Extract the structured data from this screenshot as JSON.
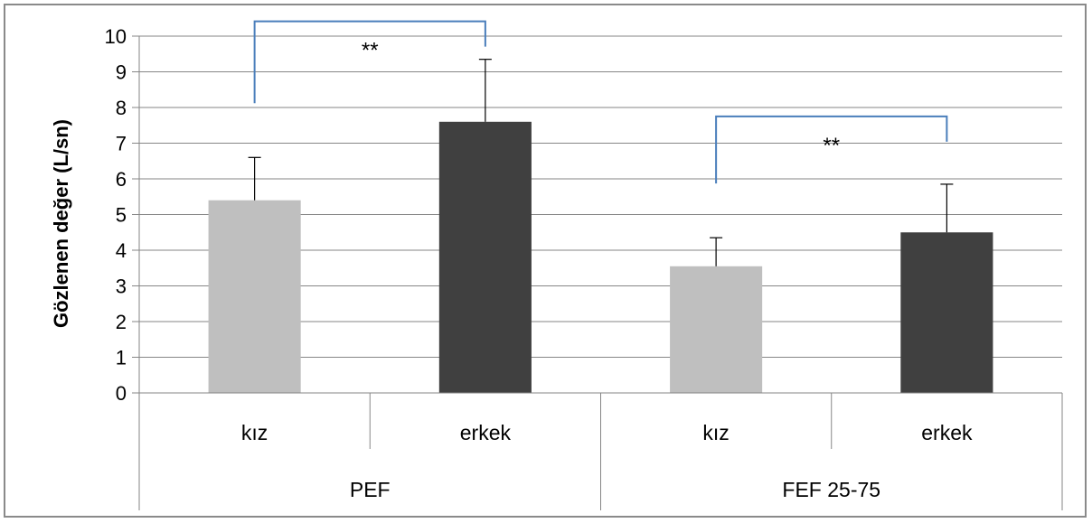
{
  "chart_data": {
    "type": "bar",
    "ylabel": "Gözlenen değer (L/sn)",
    "ylim": [
      0,
      10
    ],
    "yticks": [
      0,
      1,
      2,
      3,
      4,
      5,
      6,
      7,
      8,
      9,
      10
    ],
    "grid": true,
    "groups": [
      {
        "name": "PEF",
        "bars": [
          {
            "category": "kız",
            "value": 5.4,
            "error": 1.2,
            "color": "#bfbfbf"
          },
          {
            "category": "erkek",
            "value": 7.6,
            "error": 1.75,
            "color": "#404040"
          }
        ],
        "significance": "**"
      },
      {
        "name": "FEF 25-75",
        "bars": [
          {
            "category": "kız",
            "value": 3.55,
            "error": 0.8,
            "color": "#bfbfbf"
          },
          {
            "category": "erkek",
            "value": 4.5,
            "error": 1.35,
            "color": "#404040"
          }
        ],
        "significance": "**"
      }
    ],
    "colors": {
      "kiz": "#bfbfbf",
      "erkek": "#404040",
      "bracket": "#4a7ebb",
      "grid": "#868686"
    }
  }
}
